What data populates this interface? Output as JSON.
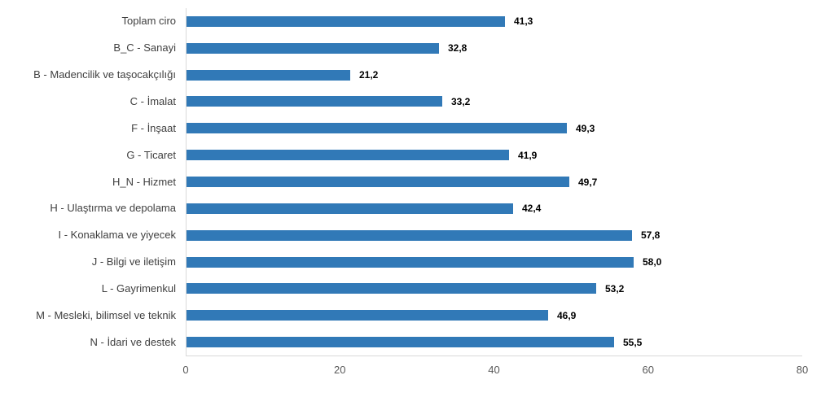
{
  "chart_data": {
    "type": "bar",
    "orientation": "horizontal",
    "title": "",
    "xlabel": "",
    "ylabel": "",
    "categories": [
      "Toplam ciro",
      "B_C - Sanayi",
      "B - Madencilik ve taşocakçılığı",
      "C - İmalat",
      "F - İnşaat",
      "G - Ticaret",
      "H_N - Hizmet",
      "H - Ulaştırma ve depolama",
      "I - Konaklama ve yiyecek",
      "J - Bilgi ve iletişim",
      "L - Gayrimenkul",
      "M - Mesleki, bilimsel ve teknik",
      "N - İdari ve destek"
    ],
    "values": [
      41.3,
      32.8,
      21.2,
      33.2,
      49.3,
      41.9,
      49.7,
      42.4,
      57.8,
      58.0,
      53.2,
      46.9,
      55.5
    ],
    "value_labels": [
      "41,3",
      "32,8",
      "21,2",
      "33,2",
      "49,3",
      "41,9",
      "49,7",
      "42,4",
      "57,8",
      "58,0",
      "53,2",
      "46,9",
      "55,5"
    ],
    "xlim": [
      0,
      80
    ],
    "x_ticks": [
      0,
      20,
      40,
      60,
      80
    ],
    "x_tick_labels": [
      "0",
      "20",
      "40",
      "60",
      "80"
    ],
    "grid": "off",
    "legend": "none",
    "colors": {
      "bar": "#3179b7",
      "axis_line": "#d9d9d9",
      "category_label": "#404040",
      "value_label": "#000000",
      "tick_label": "#595959",
      "background": "#ffffff"
    }
  }
}
